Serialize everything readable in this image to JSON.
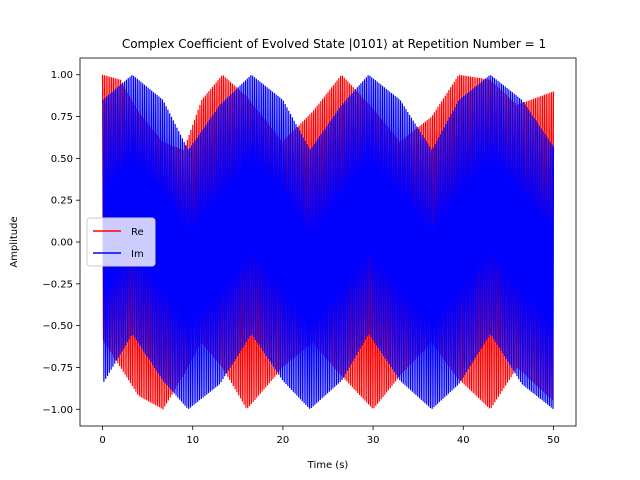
{
  "chart_data": {
    "type": "line",
    "title": "Complex Coefficient of Evolved State |0101⟩ at Repetition Number = 1",
    "xlabel": "Time (s)",
    "ylabel": "Amplitude",
    "xlim": [
      -2.5,
      52.5
    ],
    "ylim": [
      -1.1,
      1.1
    ],
    "xticks": [
      0,
      10,
      20,
      30,
      40,
      50
    ],
    "xtick_labels": [
      "0",
      "10",
      "20",
      "30",
      "40",
      "50"
    ],
    "yticks": [
      -1.0,
      -0.75,
      -0.5,
      -0.25,
      0.0,
      0.25,
      0.5,
      0.75,
      1.0
    ],
    "ytick_labels": [
      "−1.00",
      "−0.75",
      "−0.50",
      "−0.25",
      "0.00",
      "0.25",
      "0.50",
      "0.75",
      "1.00"
    ],
    "grid": false,
    "legend_position": "center-left",
    "series": [
      {
        "name": "Re",
        "color": "#ff0000",
        "envelope": {
          "t": [
            0,
            2,
            4,
            6.7,
            9,
            11,
            13.3,
            16,
            20,
            23.3,
            26.5,
            30,
            33,
            36.5,
            39.5,
            43,
            46,
            50
          ],
          "upper": [
            1.0,
            0.97,
            0.78,
            0.6,
            0.55,
            0.85,
            1.0,
            0.87,
            0.6,
            0.78,
            1.0,
            0.8,
            0.6,
            0.75,
            1.0,
            0.97,
            0.82,
            0.9
          ],
          "lower": [
            -0.58,
            -0.75,
            -0.92,
            -1.0,
            -0.8,
            -0.6,
            -0.75,
            -1.0,
            -0.75,
            -0.6,
            -0.8,
            -1.0,
            -0.8,
            -0.6,
            -0.82,
            -1.0,
            -0.75,
            -0.95
          ]
        }
      },
      {
        "name": "Im",
        "color": "#0000ff",
        "envelope": {
          "t": [
            0,
            3.3,
            6.7,
            9.5,
            13,
            16.5,
            20,
            23,
            26.5,
            29.5,
            33,
            36.5,
            39.5,
            43,
            46.5,
            50
          ],
          "upper": [
            0.85,
            1.0,
            0.85,
            0.55,
            0.82,
            1.0,
            0.85,
            0.55,
            0.82,
            1.0,
            0.85,
            0.55,
            0.85,
            1.0,
            0.85,
            0.57
          ],
          "lower": [
            -0.85,
            -0.55,
            -0.83,
            -1.0,
            -0.85,
            -0.55,
            -0.83,
            -1.0,
            -0.83,
            -0.55,
            -0.83,
            -1.0,
            -0.85,
            -0.55,
            -0.85,
            -1.0
          ]
        }
      }
    ]
  }
}
